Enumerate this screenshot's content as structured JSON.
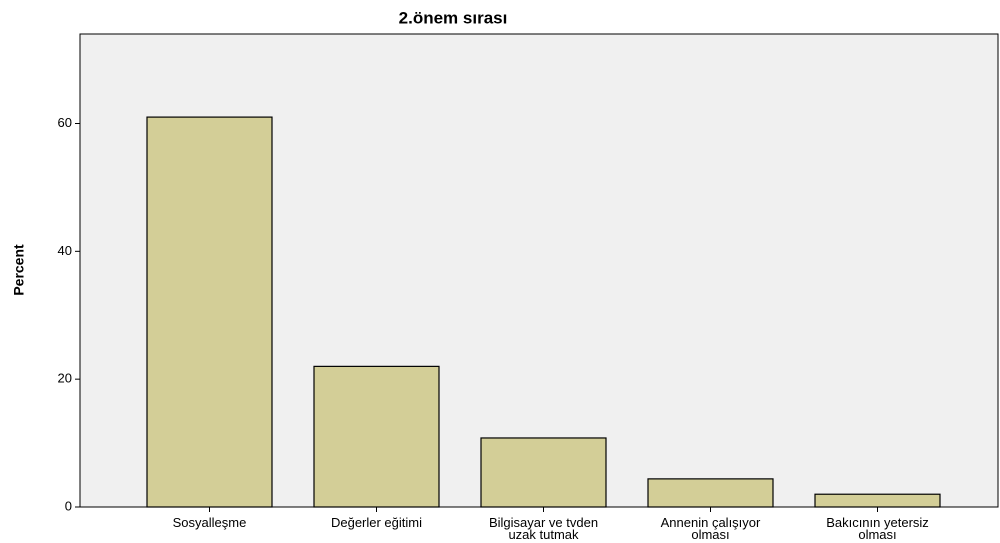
{
  "chart_data": {
    "type": "bar",
    "title": "2.önem sırası",
    "y_label": "Percent",
    "categories": [
      "Sosyalleşme",
      "Değerler eğitimi",
      "Bilgisayar ve tvden uzak tutmak",
      "Annenin çalışıyor olması",
      "Bakıcının yetersiz olması"
    ],
    "values": [
      61,
      22,
      10.8,
      4.4,
      2
    ],
    "color": "#d3ce97",
    "plot_background": "#f0f0f0",
    "ylim": [
      0,
      74
    ],
    "yticks": [
      0,
      20,
      40,
      60
    ],
    "grid": false
  }
}
